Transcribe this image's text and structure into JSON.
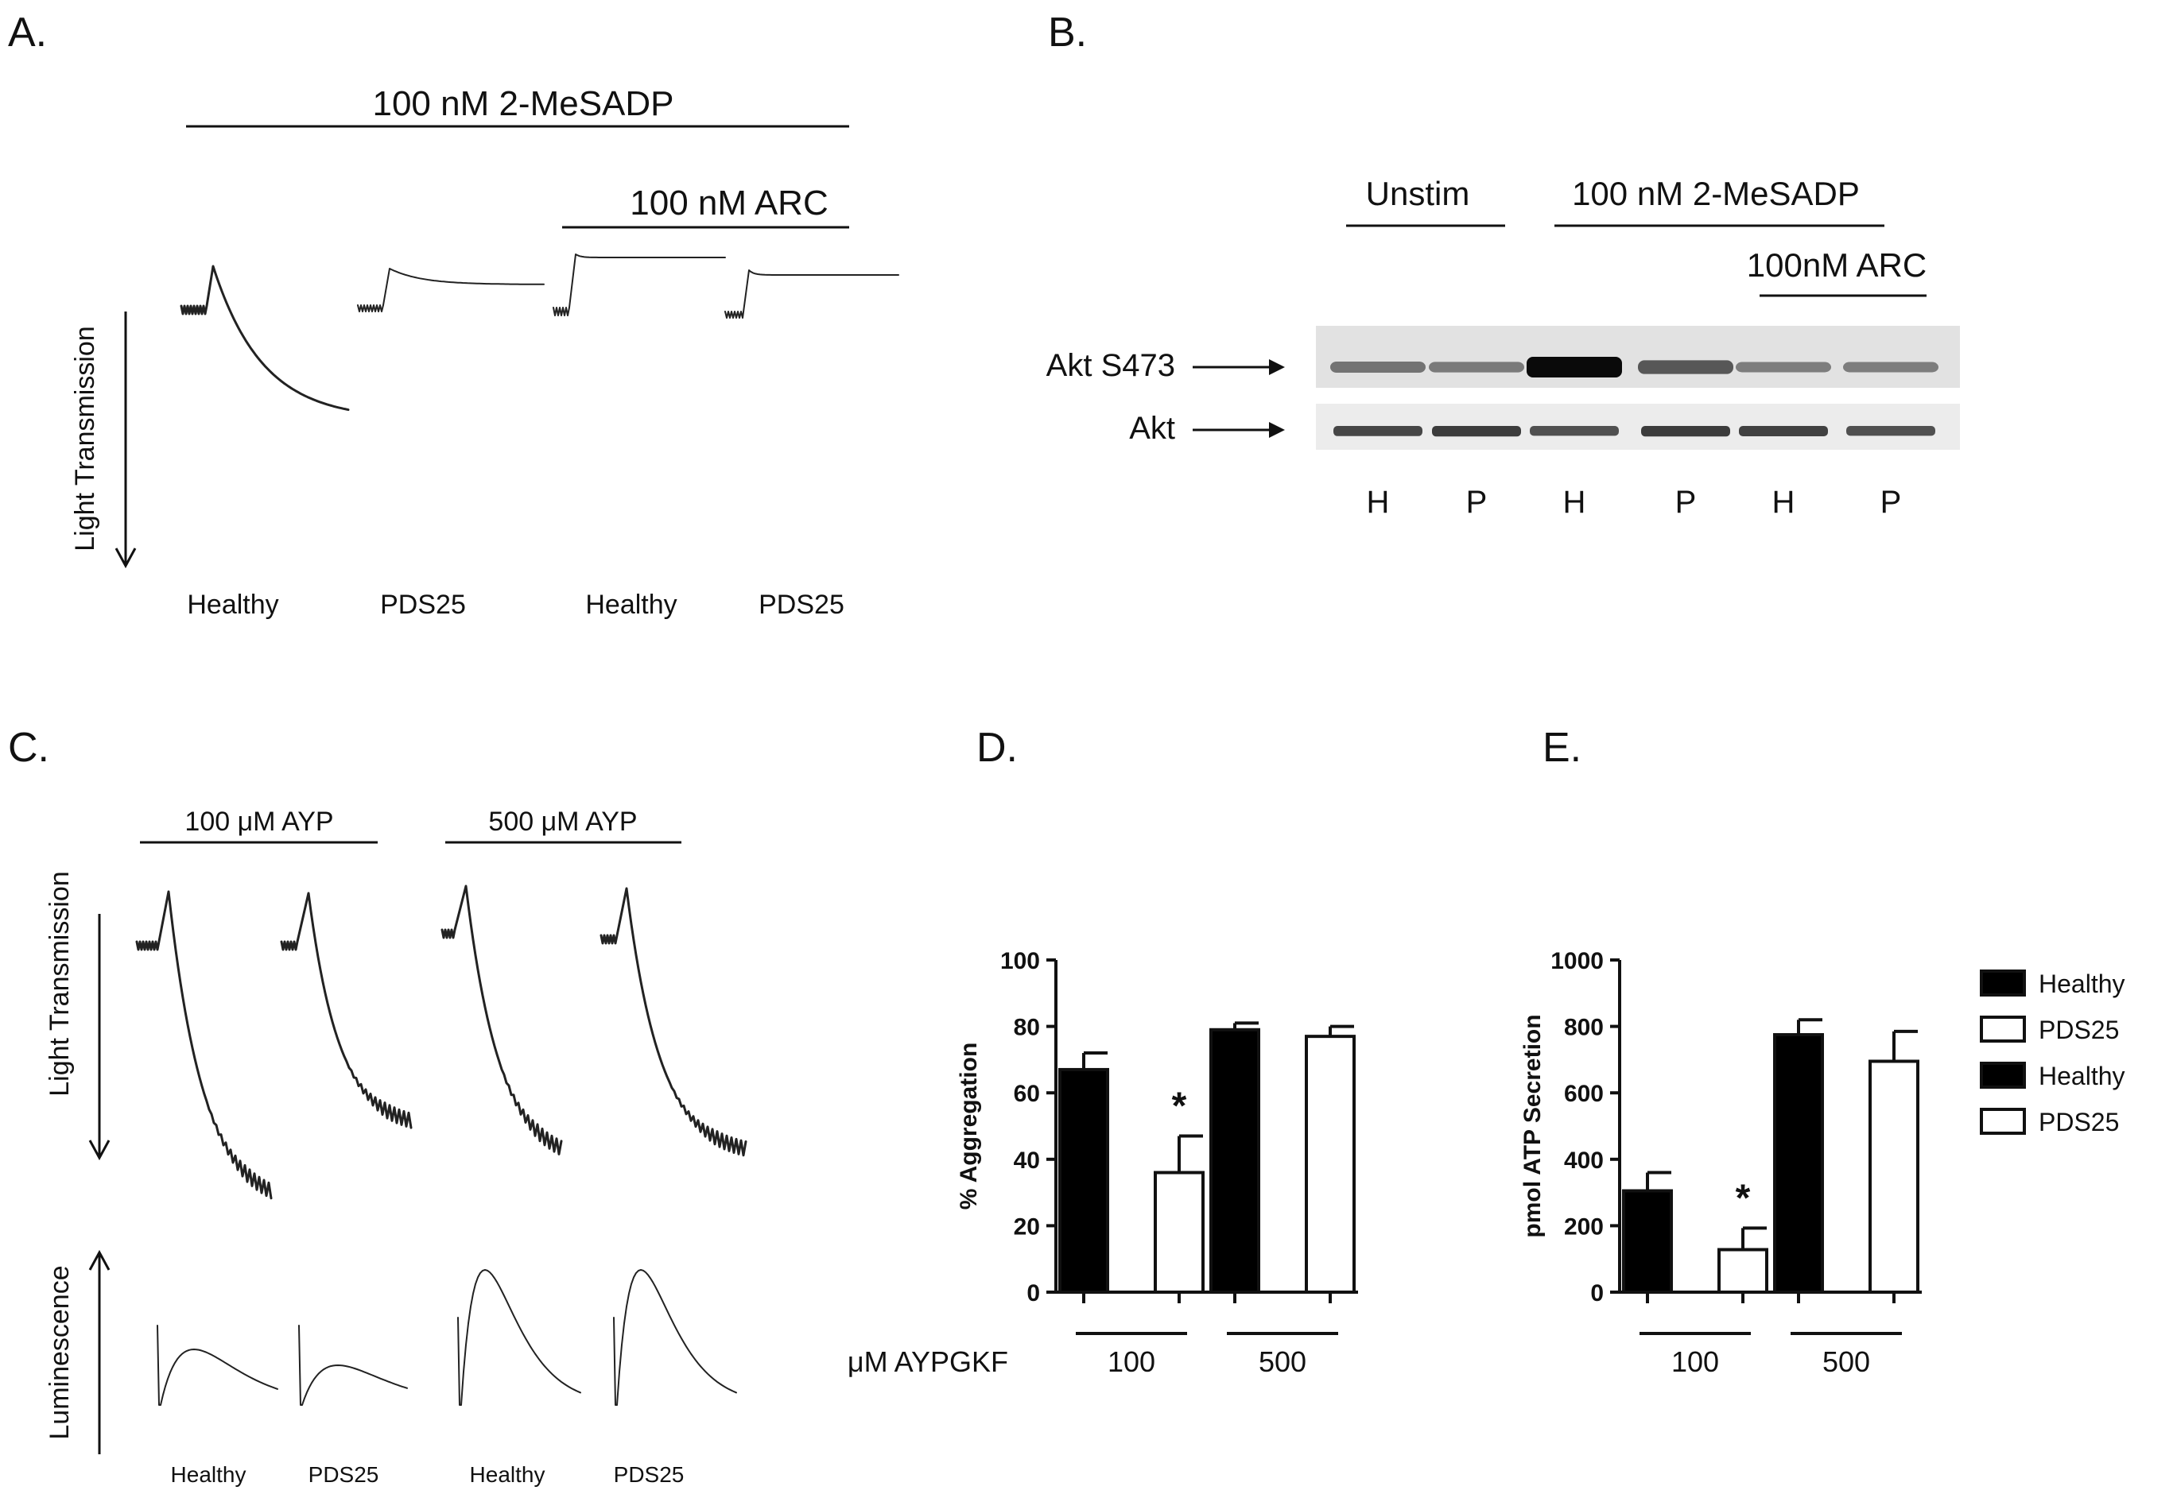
{
  "panels": {
    "A": {
      "label": "A.",
      "agonist": "100 nM 2-MeSADP",
      "inhibitor": "100 nM ARC",
      "y_axis": "Light Transmission",
      "samples": [
        "Healthy",
        "PDS25",
        "Healthy",
        "PDS25"
      ]
    },
    "B": {
      "label": "B.",
      "group_unstim": "Unstim",
      "group_agonist": "100 nM 2-MeSADP",
      "group_inhibitor": "100nM ARC",
      "band_top": "Akt S473",
      "band_bottom": "Akt",
      "lanes": [
        "H",
        "P",
        "H",
        "P",
        "H",
        "P"
      ],
      "phospho_intensity": [
        0.25,
        0.2,
        1.0,
        0.45,
        0.18,
        0.18
      ],
      "total_intensity": [
        0.7,
        0.8,
        0.6,
        0.8,
        0.75,
        0.6
      ]
    },
    "C": {
      "label": "C.",
      "group1": "100 μM AYP",
      "group2": "500 μM AYP",
      "y_axis_top": "Light Transmission",
      "y_axis_bottom": "Luminescence",
      "samples": [
        "Healthy",
        "PDS25",
        "Healthy",
        "PDS25"
      ]
    }
  },
  "chart_data": [
    {
      "panel": "D",
      "label": "D.",
      "type": "bar",
      "ylabel": "% Aggregation",
      "xlabel": "μM AYPGKF",
      "categories": [
        "100",
        "500"
      ],
      "ylim": [
        0,
        100
      ],
      "yticks": [
        0,
        20,
        40,
        60,
        80,
        100
      ],
      "series": [
        {
          "name": "Healthy",
          "fill": "#000000",
          "values": [
            67,
            79
          ],
          "errors": [
            5,
            2
          ]
        },
        {
          "name": "PDS25",
          "fill": "#ffffff",
          "values": [
            36,
            77
          ],
          "errors": [
            11,
            3
          ]
        }
      ],
      "significance": [
        "*",
        ""
      ]
    },
    {
      "panel": "E",
      "label": "E.",
      "type": "bar",
      "ylabel": "pmol ATP Secretion",
      "categories": [
        "100",
        "500"
      ],
      "ylim": [
        0,
        1000
      ],
      "yticks": [
        0,
        200,
        400,
        600,
        800,
        1000
      ],
      "series": [
        {
          "name": "Healthy",
          "fill": "#000000",
          "values": [
            305,
            775
          ],
          "errors": [
            55,
            45
          ]
        },
        {
          "name": "PDS25",
          "fill": "#ffffff",
          "values": [
            128,
            695
          ],
          "errors": [
            65,
            90
          ]
        }
      ],
      "significance": [
        "*",
        ""
      ]
    }
  ],
  "legend": {
    "entries": [
      {
        "name": "Healthy",
        "fill": "#000000"
      },
      {
        "name": "PDS25",
        "fill": "#ffffff"
      },
      {
        "name": "Healthy",
        "fill": "#000000"
      },
      {
        "name": "PDS25",
        "fill": "#ffffff"
      }
    ]
  }
}
